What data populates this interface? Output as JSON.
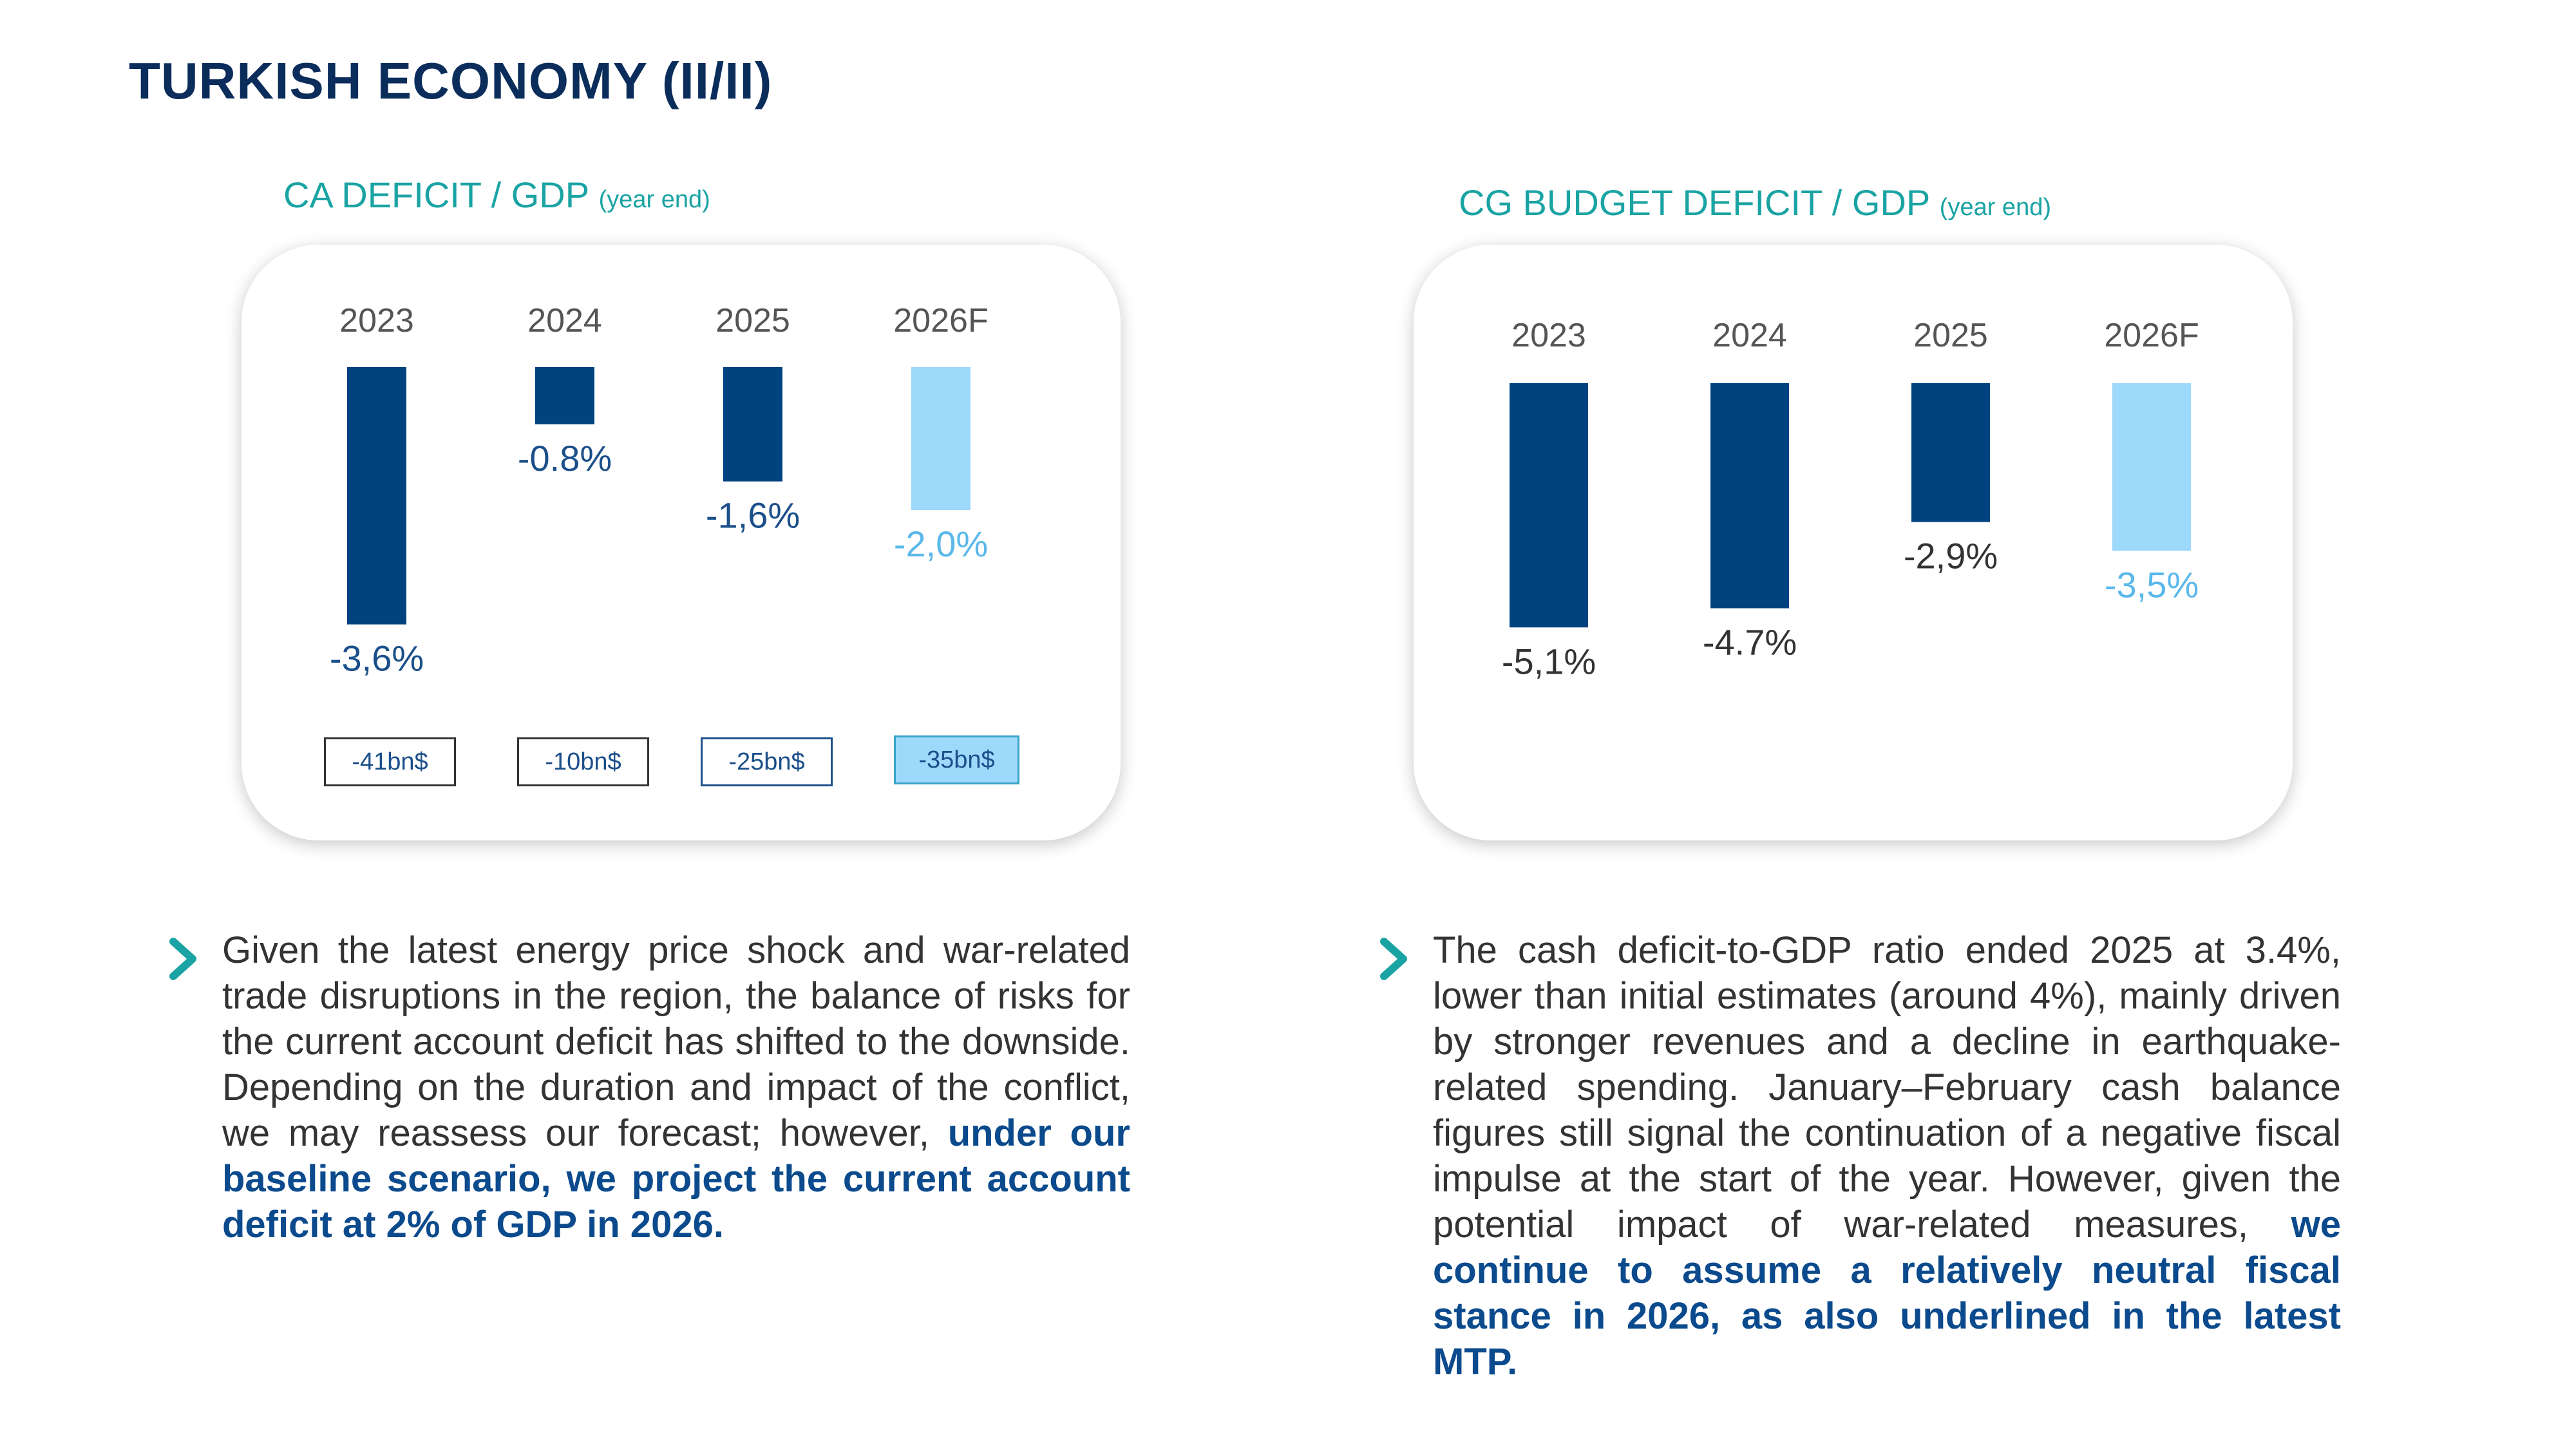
{
  "page": {
    "title": "TURKISH ECONOMY (II/II)"
  },
  "colors": {
    "dark_blue": "#00437f",
    "light_blue": "#9dd9fb",
    "teal": "#1aa3a3",
    "navy_title": "#0b2d5b"
  },
  "chart_data": [
    {
      "type": "bar",
      "title": "CA DEFICIT / GDP",
      "subtitle": "(year end)",
      "categories": [
        "2023",
        "2024",
        "2025",
        "2026F"
      ],
      "values": [
        -3.6,
        -0.8,
        -1.6,
        -2.0
      ],
      "value_labels": [
        "-3,6%",
        "-0.8%",
        "-1,6%",
        "-2,0%"
      ],
      "forecast": [
        false,
        false,
        false,
        true
      ],
      "ylim": [
        -4.0,
        0
      ],
      "footnotes": [
        "-41bn$",
        "-10bn$",
        "-25bn$",
        "-35bn$"
      ]
    },
    {
      "type": "bar",
      "title": "CG BUDGET DEFICIT / GDP",
      "subtitle": "(year end)",
      "categories": [
        "2023",
        "2024",
        "2025",
        "2026F"
      ],
      "values": [
        -5.1,
        -4.7,
        -2.9,
        -3.5
      ],
      "value_labels": [
        "-5,1%",
        "-4.7%",
        "-2,9%",
        "-3,5%"
      ],
      "forecast": [
        false,
        false,
        false,
        true
      ],
      "ylim": [
        -5.5,
        0
      ]
    }
  ],
  "commentary": {
    "ca": {
      "normal": "Given the latest energy price shock and war-related trade disruptions in the region, the balance of risks for the current account deficit has shifted to the downside. Depending on the duration and impact of the conflict, we may reassess our forecast; however, ",
      "highlight": "under our baseline scenario, we project the current account deficit at 2% of GDP in 2026."
    },
    "cg": {
      "normal": "The cash deficit-to-GDP ratio ended 2025 at 3.4%, lower than initial estimates (around 4%), mainly driven by stronger revenues and a decline in earthquake-related spending. January–February cash balance figures still signal the continuation of a negative fiscal impulse at the start of the year. However, given the potential impact of war-related measures, ",
      "highlight": "we continue to assume a relatively neutral fiscal stance in 2026, as also underlined in the latest MTP."
    }
  }
}
